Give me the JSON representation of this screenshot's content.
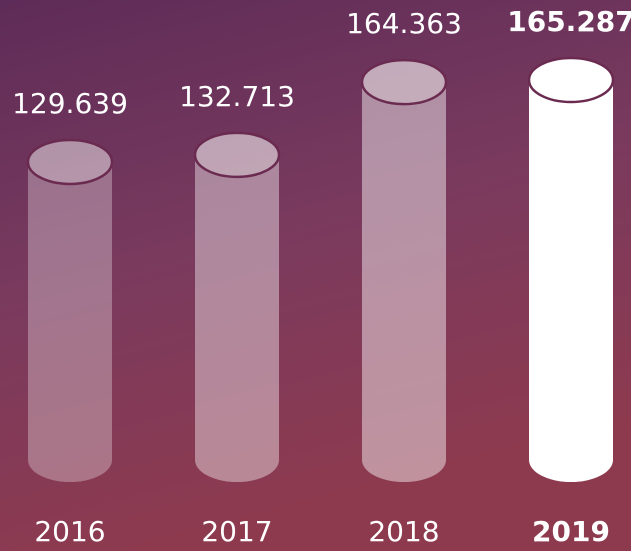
{
  "chart_data": {
    "type": "cylinder-bar",
    "categories": [
      "2016",
      "2017",
      "2018",
      "2019"
    ],
    "values": [
      129639,
      132713,
      164363,
      165287
    ],
    "value_labels": [
      "129.639",
      "132.713",
      "164.363",
      "165.287"
    ],
    "colors": [
      "rgba(255,255,255,0.3)",
      "rgba(255,255,255,0.4)",
      "rgba(255,255,255,0.45)",
      "rgba(255,255,255,1)"
    ]
  }
}
